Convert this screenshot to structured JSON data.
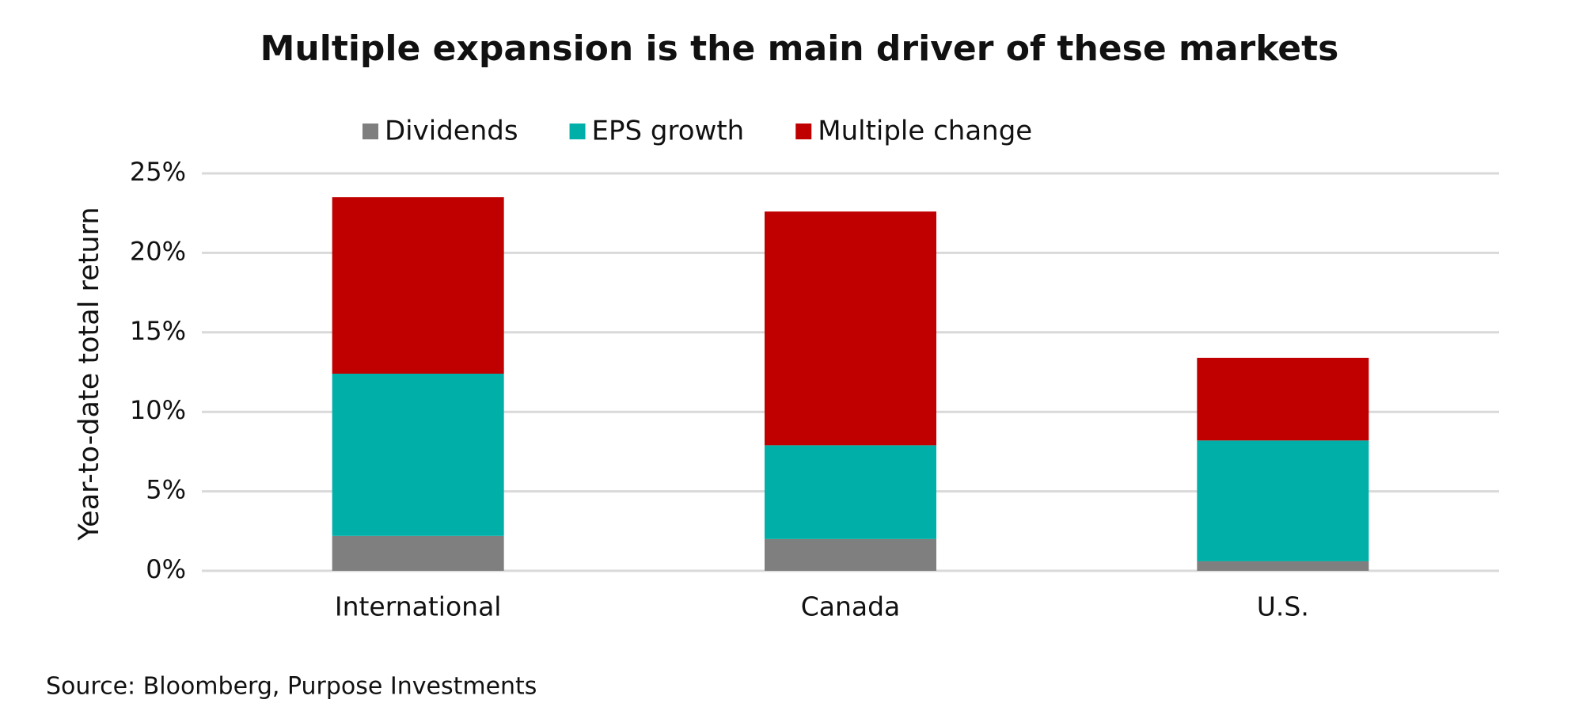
{
  "chart_data": {
    "type": "stacked_bar",
    "title": "Multiple expansion is the main driver of these markets",
    "y_label": "Year-to-date total return",
    "source": "Source: Bloomberg, Purpose Investments",
    "categories": [
      "International",
      "Canada",
      "U.S."
    ],
    "series": [
      {
        "name": "Dividends",
        "color": "#7f7f7f",
        "values": [
          2.2,
          2.0,
          0.6
        ]
      },
      {
        "name": "EPS growth",
        "color": "#00b0a8",
        "values": [
          10.2,
          5.9,
          7.6
        ]
      },
      {
        "name": "Multiple change",
        "color": "#c00000",
        "values": [
          11.1,
          14.7,
          5.2
        ]
      }
    ],
    "ylim": [
      0,
      25
    ],
    "yticks": [
      {
        "value": 0,
        "label": "0%"
      },
      {
        "value": 5,
        "label": "5%"
      },
      {
        "value": 10,
        "label": "10%"
      },
      {
        "value": 15,
        "label": "15%"
      },
      {
        "value": 20,
        "label": "20%"
      },
      {
        "value": 25,
        "label": "25%"
      }
    ],
    "grid": true,
    "legend": "top"
  }
}
